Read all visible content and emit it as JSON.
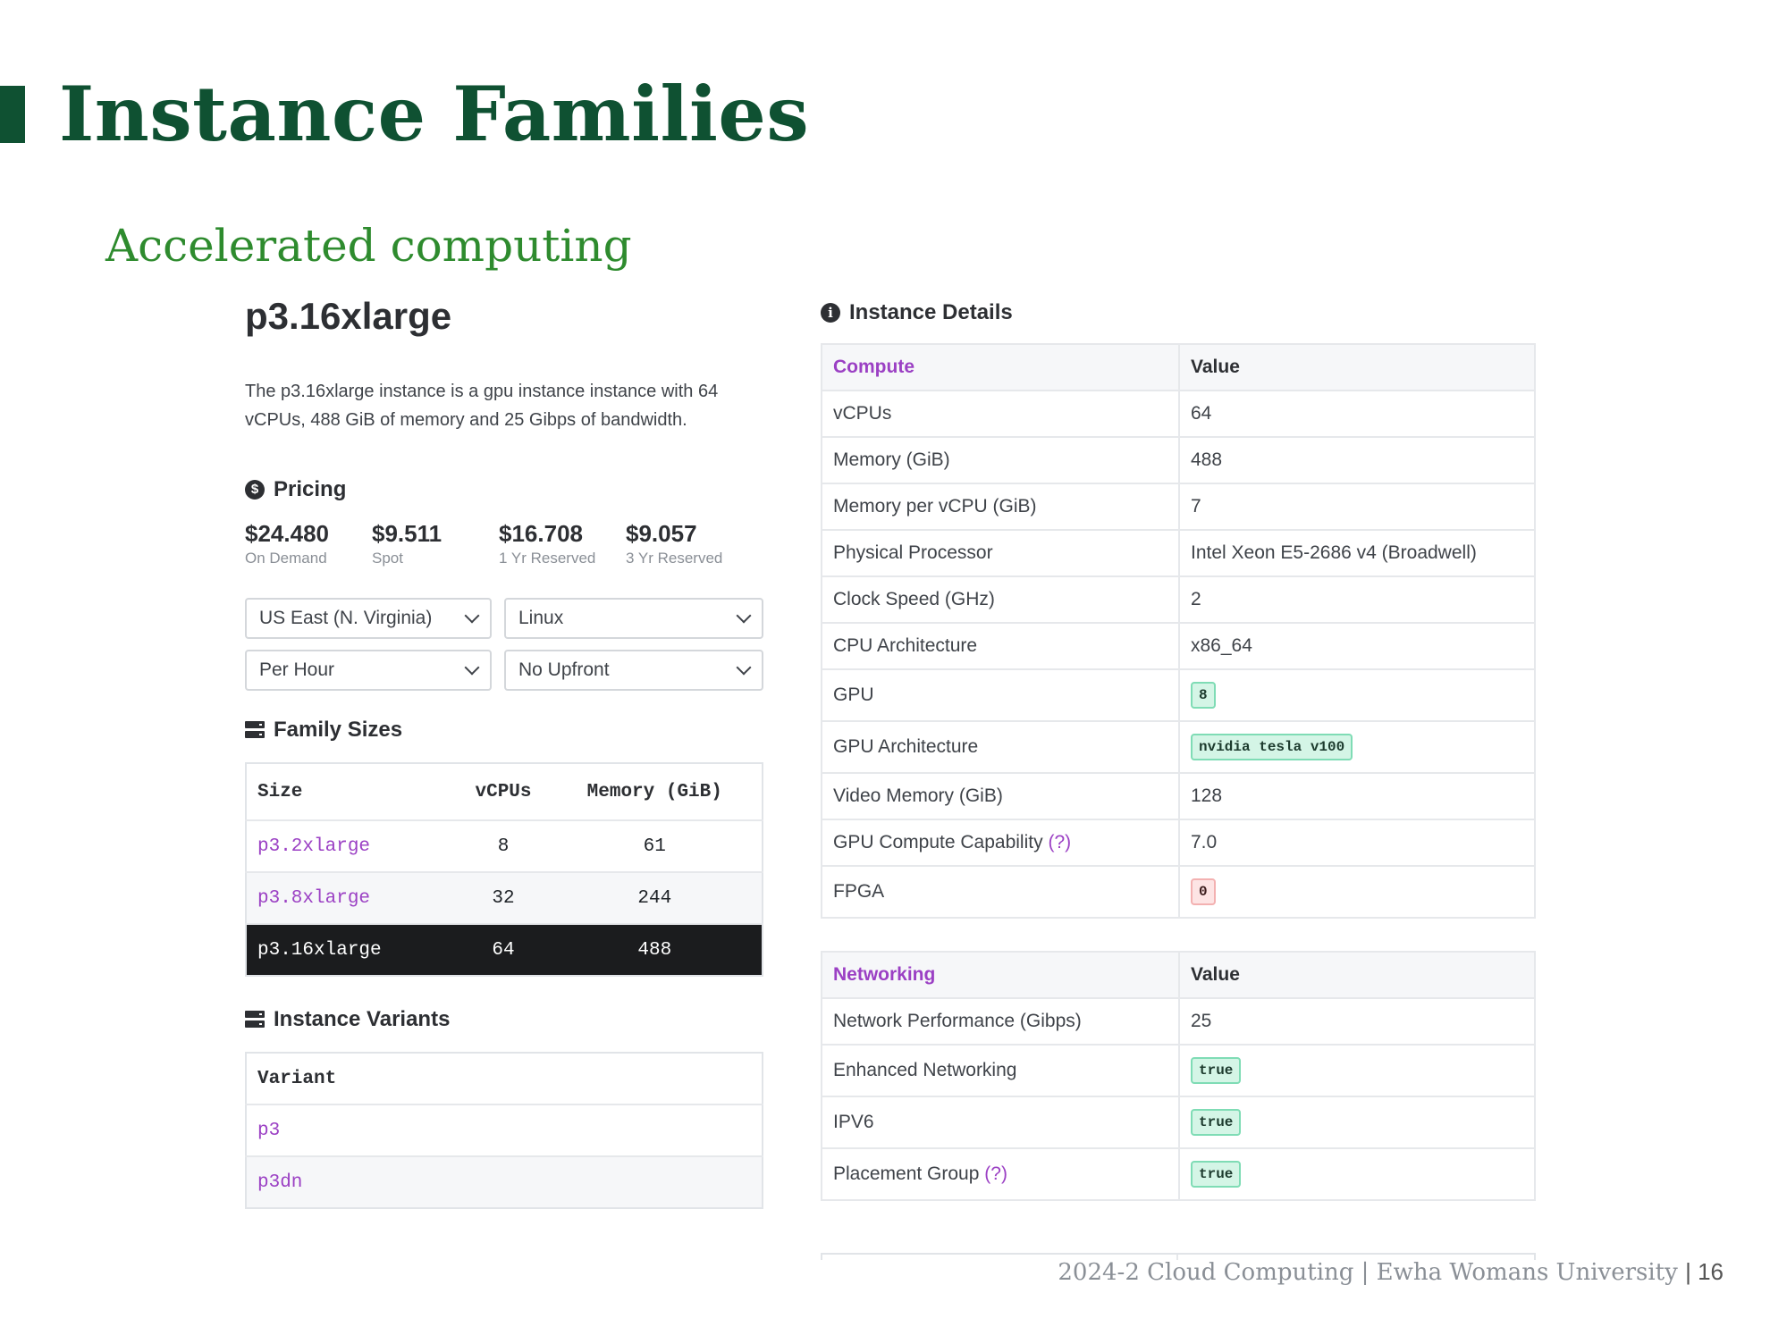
{
  "slide": {
    "title": "Instance Families",
    "subtitle": "Accelerated computing",
    "footer_text": "2024-2 Cloud Computing  |  Ewha Womans University",
    "page_number": "| 16"
  },
  "instance": {
    "name": "p3.16xlarge",
    "description": "The p3.16xlarge instance is a gpu instance instance with 64 vCPUs, 488 GiB of memory and 25 Gibps of bandwidth."
  },
  "pricing": {
    "heading": "Pricing",
    "items": [
      {
        "amount": "$24.480",
        "label": "On Demand"
      },
      {
        "amount": "$9.511",
        "label": "Spot"
      },
      {
        "amount": "$16.708",
        "label": "1 Yr Reserved"
      },
      {
        "amount": "$9.057",
        "label": "3 Yr Reserved"
      }
    ],
    "region": "US East (N. Virginia)",
    "os": "Linux",
    "period": "Per Hour",
    "payment": "No Upfront"
  },
  "family_sizes": {
    "heading": "Family Sizes",
    "headers": [
      "Size",
      "vCPUs",
      "Memory (GiB)"
    ],
    "rows": [
      {
        "size": "p3.2xlarge",
        "vcpus": "8",
        "memory": "61"
      },
      {
        "size": "p3.8xlarge",
        "vcpus": "32",
        "memory": "244"
      },
      {
        "size": "p3.16xlarge",
        "vcpus": "64",
        "memory": "488"
      }
    ]
  },
  "variants": {
    "heading": "Instance Variants",
    "header": "Variant",
    "rows": [
      "p3",
      "p3dn"
    ]
  },
  "details": {
    "heading": "Instance Details",
    "compute": {
      "header": "Compute",
      "value_header": "Value",
      "rows": [
        {
          "key": "vCPUs",
          "value": "64"
        },
        {
          "key": "Memory (GiB)",
          "value": "488"
        },
        {
          "key": "Memory per vCPU (GiB)",
          "value": "7"
        },
        {
          "key": "Physical Processor",
          "value": "Intel Xeon E5-2686 v4 (Broadwell)"
        },
        {
          "key": "Clock Speed (GHz)",
          "value": "2"
        },
        {
          "key": "CPU Architecture",
          "value": "x86_64"
        },
        {
          "key": "GPU",
          "value": "8"
        },
        {
          "key": "GPU Architecture",
          "value": "nvidia tesla v100"
        },
        {
          "key": "Video Memory (GiB)",
          "value": "128"
        },
        {
          "key": "GPU Compute Capability",
          "help": "(?)",
          "value": "7.0"
        },
        {
          "key": "FPGA",
          "value": "0"
        }
      ]
    },
    "networking": {
      "header": "Networking",
      "value_header": "Value",
      "rows": [
        {
          "key": "Network Performance (Gibps)",
          "value": "25"
        },
        {
          "key": "Enhanced Networking",
          "value": "true"
        },
        {
          "key": "IPV6",
          "value": "true"
        },
        {
          "key": "Placement Group",
          "help": "(?)",
          "value": "true"
        }
      ]
    }
  },
  "colors": {
    "title_green": "#0f5132",
    "subtitle_green": "#2e8b2e",
    "link_purple": "#9b40c4",
    "badge_green": "#d4f5e6",
    "badge_red": "#fde4e4"
  }
}
